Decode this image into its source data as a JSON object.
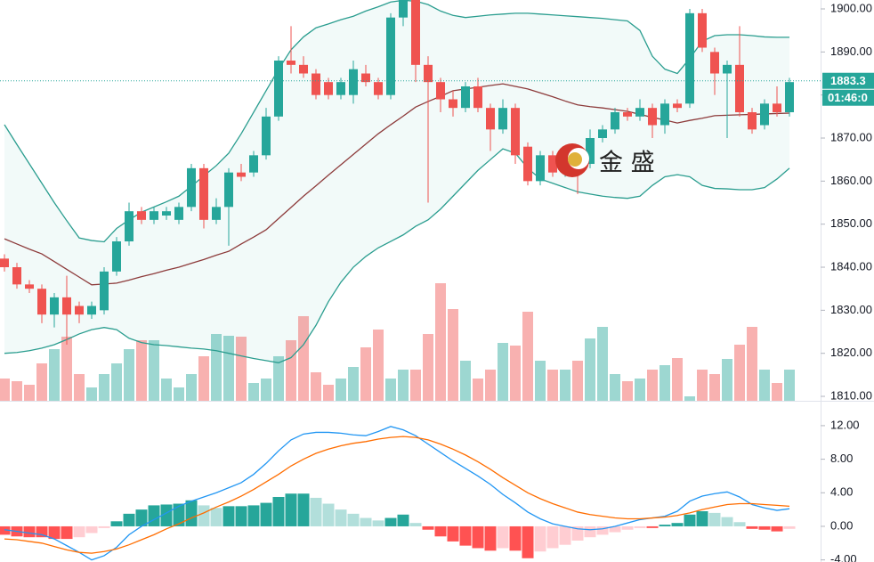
{
  "chart_data": [
    {
      "type": "candlestick",
      "up_color": "#26a69a",
      "down_color": "#ef5350",
      "open": [
        1842,
        1840,
        1836,
        1835,
        1829,
        1833,
        1831,
        1829,
        1830,
        1839,
        1846,
        1853,
        1851,
        1852,
        1851,
        1854,
        1863,
        1851,
        1854,
        1862,
        1862,
        1866,
        1875,
        1888,
        1887,
        1885,
        1883,
        1880,
        1880,
        1885,
        1883,
        1880,
        1898,
        1903,
        1887,
        1883,
        1879,
        1877,
        1882,
        1877,
        1872,
        1877,
        1868,
        1860,
        1866,
        1862,
        1866,
        1864,
        1870,
        1872,
        1876,
        1875,
        1877,
        1873,
        1878,
        1878,
        1899,
        1890,
        1885,
        1887,
        1876,
        1873,
        1878,
        1876
      ],
      "high": [
        1843,
        1841,
        1837,
        1836,
        1834,
        1838,
        1832,
        1832,
        1840,
        1847,
        1855,
        1854,
        1854,
        1854,
        1855,
        1864,
        1864,
        1856,
        1863,
        1864,
        1867,
        1877,
        1889,
        1896,
        1889,
        1886,
        1884,
        1884,
        1888,
        1887,
        1884,
        1899,
        1906,
        1904,
        1889,
        1884,
        1881,
        1883,
        1884,
        1878,
        1879,
        1878,
        1869,
        1867,
        1867,
        1868,
        1868,
        1872,
        1873,
        1877,
        1877,
        1879,
        1878,
        1879,
        1879,
        1900,
        1900,
        1891,
        1888,
        1896,
        1877,
        1879,
        1882,
        1884
      ],
      "low": [
        1839,
        1835,
        1834,
        1827,
        1826,
        1822,
        1827,
        1828,
        1829,
        1838,
        1845,
        1850,
        1850,
        1851,
        1850,
        1853,
        1849,
        1850,
        1845,
        1860,
        1861,
        1865,
        1874,
        1885,
        1884,
        1879,
        1879,
        1879,
        1878,
        1882,
        1879,
        1879,
        1896,
        1883,
        1855,
        1876,
        1875,
        1876,
        1876,
        1867,
        1871,
        1864,
        1859,
        1859,
        1861,
        1861,
        1857,
        1863,
        1869,
        1871,
        1874,
        1874,
        1870,
        1871,
        1876,
        1877,
        1890,
        1880,
        1870,
        1875,
        1871,
        1872,
        1875,
        1875
      ],
      "close": [
        1840,
        1836,
        1835,
        1829,
        1833,
        1829,
        1829,
        1831,
        1839,
        1846,
        1853,
        1851,
        1853,
        1853,
        1854,
        1863,
        1851,
        1854,
        1862,
        1861,
        1866,
        1875,
        1888,
        1887,
        1885,
        1880,
        1880,
        1883,
        1886,
        1883,
        1880,
        1898,
        1903,
        1887,
        1883,
        1879,
        1877,
        1882,
        1877,
        1872,
        1877,
        1866,
        1860,
        1866,
        1862,
        1866,
        1863,
        1870,
        1872,
        1876,
        1875,
        1877,
        1873,
        1878,
        1877,
        1899,
        1891,
        1885,
        1887,
        1876,
        1872,
        1878,
        1876,
        1883
      ],
      "ylim": [
        1808.97,
        1902.07
      ],
      "yticks": [
        {
          "value": 1810,
          "label": "1810.00"
        },
        {
          "value": 1820,
          "label": "1820.00"
        },
        {
          "value": 1830,
          "label": "1830.00"
        },
        {
          "value": 1840,
          "label": "1840.00"
        },
        {
          "value": 1850,
          "label": "1850.00"
        },
        {
          "value": 1860,
          "label": "1860.00"
        },
        {
          "value": 1870,
          "label": "1870.00"
        },
        {
          "value": 1880,
          "label": "1880.00"
        },
        {
          "value": 1890,
          "label": "1890.00"
        },
        {
          "value": 1900,
          "label": "1900.00"
        }
      ],
      "bands": {
        "color": "#2a9d8f",
        "middle_color": "#8d3b3b",
        "fill": "rgba(38,166,154,0.06)",
        "upper": [
          1873.1,
          1868.5,
          1864.0,
          1859.5,
          1855.0,
          1850.8,
          1846.8,
          1846.2,
          1845.9,
          1849.0,
          1851.0,
          1852.8,
          1854.0,
          1855.2,
          1856.5,
          1858.8,
          1861.2,
          1863.6,
          1866.5,
          1871.0,
          1876.0,
          1881.0,
          1886.0,
          1890.5,
          1893.5,
          1895.6,
          1896.5,
          1897.5,
          1898.3,
          1899.5,
          1900.5,
          1901.6,
          1902.0,
          1901.8,
          1901.0,
          1899.5,
          1898.5,
          1898.0,
          1898.3,
          1898.6,
          1898.8,
          1899.0,
          1899.0,
          1898.8,
          1898.6,
          1898.4,
          1898.2,
          1898.0,
          1897.8,
          1897.5,
          1897.2,
          1895.0,
          1889.0,
          1886.0,
          1885.0,
          1888.5,
          1892.5,
          1893.8,
          1894.0,
          1894.0,
          1893.8,
          1893.5,
          1893.4,
          1893.4
        ],
        "middle": [
          1846.6,
          1845.4,
          1844.2,
          1843.1,
          1841.3,
          1839.5,
          1837.7,
          1835.9,
          1836.1,
          1836.3,
          1837.0,
          1837.8,
          1838.5,
          1839.3,
          1840.0,
          1840.9,
          1841.8,
          1842.8,
          1843.7,
          1845.4,
          1847.0,
          1848.7,
          1851.3,
          1853.9,
          1856.5,
          1858.9,
          1861.4,
          1863.8,
          1866.2,
          1868.6,
          1871.0,
          1873.1,
          1875.1,
          1877.2,
          1878.5,
          1879.7,
          1881.0,
          1881.4,
          1881.8,
          1882.2,
          1882.6,
          1882.0,
          1881.4,
          1880.5,
          1879.6,
          1878.6,
          1877.7,
          1877.3,
          1877.0,
          1876.6,
          1876.2,
          1875.5,
          1874.8,
          1874.2,
          1873.5,
          1874.1,
          1874.6,
          1875.2,
          1875.3,
          1875.4,
          1875.5,
          1875.6,
          1875.7,
          1875.8
        ],
        "lower": [
          1820.0,
          1820.2,
          1820.6,
          1821.2,
          1822.0,
          1823.2,
          1824.5,
          1825.5,
          1826.0,
          1825.5,
          1823.5,
          1822.5,
          1822.0,
          1821.8,
          1821.5,
          1821.2,
          1821.0,
          1820.6,
          1820.0,
          1819.4,
          1818.8,
          1818.3,
          1817.8,
          1819.0,
          1822.0,
          1826.5,
          1832.0,
          1836.5,
          1840.0,
          1842.5,
          1844.5,
          1846.0,
          1847.5,
          1849.5,
          1851.0,
          1853.5,
          1856.5,
          1859.5,
          1862.5,
          1865.0,
          1867.5,
          1866.5,
          1863.0,
          1860.5,
          1859.5,
          1858.5,
          1857.5,
          1857.0,
          1856.5,
          1856.2,
          1856.0,
          1856.5,
          1859.0,
          1861.0,
          1861.5,
          1861.0,
          1859.0,
          1858.3,
          1858.2,
          1858.0,
          1858.0,
          1858.5,
          1860.5,
          1863.0
        ]
      },
      "volume": {
        "up_color": "rgba(38,166,154,0.45)",
        "down_color": "rgba(239,83,80,0.45)",
        "ylim": [
          0,
          440
        ],
        "values": [
          25,
          22,
          18,
          42,
          58,
          72,
          30,
          15,
          30,
          42,
          58,
          68,
          68,
          25,
          15,
          30,
          50,
          75,
          73,
          72,
          20,
          25,
          50,
          68,
          95,
          32,
          18,
          25,
          38,
          60,
          80,
          25,
          35,
          35,
          75,
          132,
          103,
          45,
          25,
          35,
          65,
          62,
          100,
          45,
          35,
          35,
          45,
          70,
          83,
          30,
          22,
          25,
          35,
          40,
          48,
          5,
          35,
          30,
          47,
          63,
          83,
          35,
          20,
          35
        ]
      },
      "last_price": {
        "value": 1883.3,
        "label": "1883.3"
      },
      "timer": "01:46:0",
      "watermark": "金 盛"
    },
    {
      "type": "macd",
      "ylim": [
        -4.25,
        14.75
      ],
      "yticks": [
        {
          "value": -4,
          "label": "-4.00"
        },
        {
          "value": 0,
          "label": "0.00"
        },
        {
          "value": 4,
          "label": "4.00"
        },
        {
          "value": 8,
          "label": "8.00"
        },
        {
          "value": 12,
          "label": "12.00"
        }
      ],
      "series": [
        {
          "color": "#2196f3",
          "values": [
            -0.4,
            -0.6,
            -0.8,
            -1.0,
            -1.5,
            -2.3,
            -3.1,
            -4.0,
            -3.5,
            -2.5,
            -1.0,
            0.0,
            0.8,
            1.6,
            2.4,
            3.0,
            3.5,
            4.0,
            4.6,
            5.2,
            6.2,
            7.5,
            9.0,
            10.3,
            11.0,
            11.2,
            11.2,
            11.1,
            10.9,
            10.8,
            11.3,
            11.9,
            11.5,
            10.8,
            9.8,
            8.8,
            7.8,
            6.9,
            6.0,
            5.0,
            3.8,
            2.8,
            1.7,
            0.9,
            0.3,
            0.0,
            -0.3,
            -0.4,
            -0.3,
            0.0,
            0.4,
            0.8,
            1.0,
            1.2,
            1.8,
            3.0,
            3.6,
            3.9,
            4.1,
            3.5,
            2.6,
            2.2,
            1.9,
            2.1
          ]
        },
        {
          "color": "#ff6d00",
          "values": [
            -1.5,
            -1.6,
            -1.8,
            -2.0,
            -2.4,
            -2.8,
            -3.1,
            -3.2,
            -3.0,
            -2.7,
            -2.2,
            -1.6,
            -1.0,
            -0.3,
            0.3,
            1.0,
            1.6,
            2.3,
            2.9,
            3.6,
            4.4,
            5.3,
            6.2,
            7.2,
            8.0,
            8.7,
            9.2,
            9.6,
            9.9,
            10.1,
            10.4,
            10.6,
            10.7,
            10.6,
            10.3,
            9.8,
            9.2,
            8.5,
            7.7,
            6.8,
            5.8,
            4.9,
            4.0,
            3.3,
            2.7,
            2.2,
            1.7,
            1.4,
            1.2,
            1.0,
            0.9,
            0.9,
            1.0,
            1.1,
            1.3,
            1.6,
            2.0,
            2.3,
            2.6,
            2.7,
            2.7,
            2.6,
            2.5,
            2.4
          ]
        }
      ],
      "histogram": {
        "colors": [
          "#26a69a",
          "#b2dfdb",
          "#ff5252",
          "#ffcdd2"
        ],
        "values": [
          -1.0,
          -1.2,
          -1.3,
          -1.3,
          -1.5,
          -1.5,
          -1.3,
          -0.8,
          -0.2,
          0.6,
          1.5,
          2.0,
          2.5,
          2.6,
          2.7,
          3.1,
          2.5,
          2.2,
          2.4,
          2.4,
          2.5,
          2.8,
          3.5,
          3.9,
          3.9,
          3.4,
          2.7,
          2.0,
          1.5,
          1.0,
          0.7,
          1.0,
          1.4,
          0.4,
          -0.4,
          -1.2,
          -1.8,
          -2.3,
          -2.6,
          -2.9,
          -2.6,
          -2.9,
          -3.8,
          -3.0,
          -2.6,
          -2.2,
          -1.7,
          -1.3,
          -1.0,
          -0.7,
          -0.4,
          -0.2,
          -0.2,
          0.2,
          0.4,
          1.4,
          1.8,
          1.6,
          1.1,
          0.5,
          -0.3,
          -0.4,
          -0.6,
          -0.3
        ]
      }
    }
  ]
}
